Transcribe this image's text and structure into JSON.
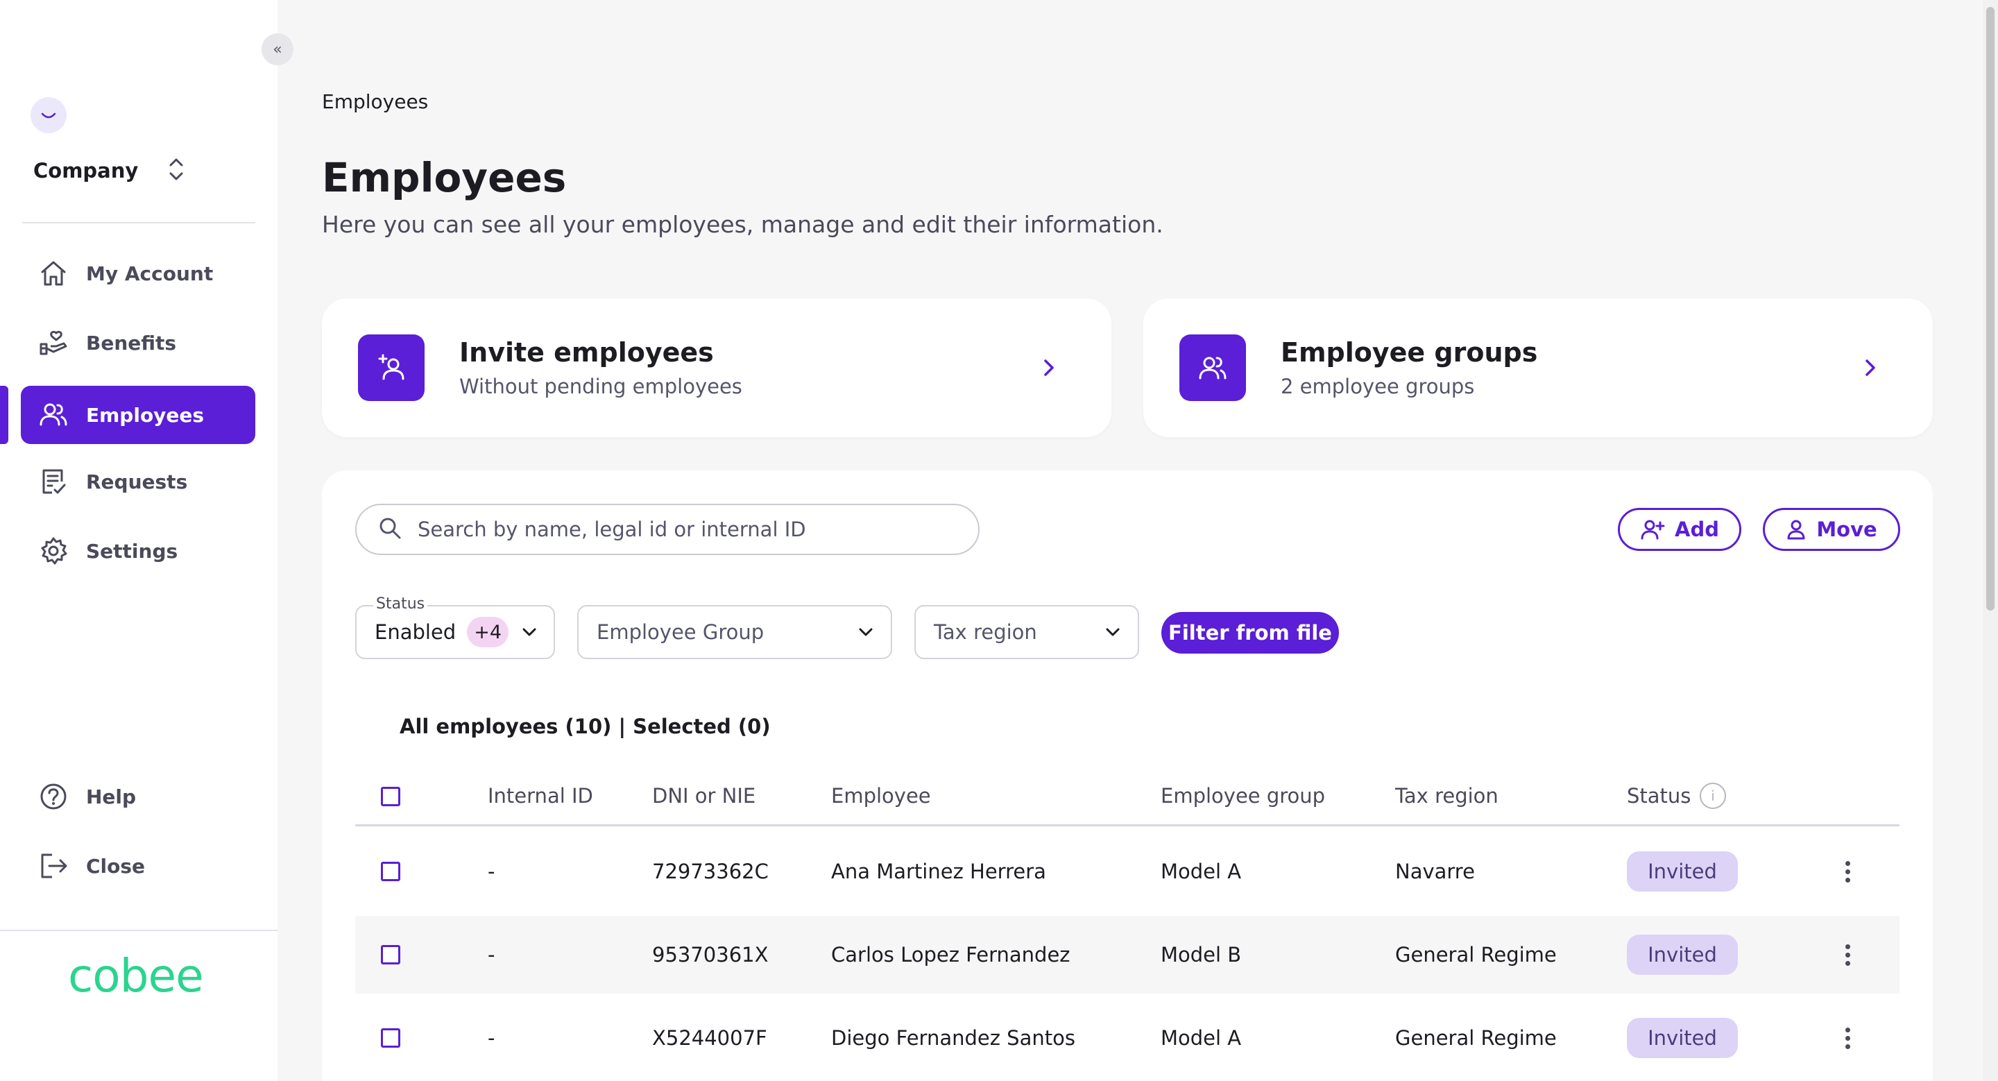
{
  "sidebar": {
    "collapse_icon": "«",
    "company": {
      "name": "Company"
    },
    "items": [
      {
        "label": "My Account",
        "icon": "home-icon"
      },
      {
        "label": "Benefits",
        "icon": "hand-heart-icon"
      },
      {
        "label": "Employees",
        "icon": "users-icon",
        "active": true
      },
      {
        "label": "Requests",
        "icon": "document-list-icon"
      },
      {
        "label": "Settings",
        "icon": "gear-icon"
      }
    ],
    "bottom_items": [
      {
        "label": "Help",
        "icon": "help-icon"
      },
      {
        "label": "Close",
        "icon": "logout-icon"
      }
    ],
    "brand": "cobee"
  },
  "breadcrumb": "Employees",
  "header": {
    "title": "Employees",
    "subtitle": "Here you can see all your employees, manage and edit their information."
  },
  "cards": [
    {
      "title": "Invite employees",
      "subtitle": "Without pending employees",
      "icon": "user-add-icon"
    },
    {
      "title": "Employee groups",
      "subtitle": "2 employee groups",
      "icon": "users-icon"
    }
  ],
  "search": {
    "placeholder": "Search by name, legal id or internal ID",
    "value": ""
  },
  "actions": {
    "add_label": "Add",
    "move_label": "Move"
  },
  "filters": {
    "status_label": "Status",
    "status_value": "Enabled",
    "status_extra": "+4",
    "group_placeholder": "Employee Group",
    "tax_placeholder": "Tax region",
    "filter_file_label": "Filter from file"
  },
  "counts": "All employees (10) | Selected (0)",
  "table": {
    "columns": [
      "Internal ID",
      "DNI or NIE",
      "Employee",
      "Employee group",
      "Tax region",
      "Status"
    ],
    "rows": [
      {
        "internal_id": "-",
        "dni": "72973362C",
        "employee": "Ana Martinez Herrera",
        "group": "Model A",
        "tax_region": "Navarre",
        "status": "Invited"
      },
      {
        "internal_id": "-",
        "dni": "95370361X",
        "employee": "Carlos Lopez Fernandez",
        "group": "Model B",
        "tax_region": "General Regime",
        "status": "Invited"
      },
      {
        "internal_id": "-",
        "dni": "X5244007F",
        "employee": "Diego Fernandez Santos",
        "group": "Model A",
        "tax_region": "General Regime",
        "status": "Invited"
      }
    ]
  },
  "colors": {
    "primary": "#5a1fd6",
    "brand": "#2bd48f",
    "badge_bg": "#dcd3f7",
    "count_badge_bg": "#f4d4f3"
  }
}
